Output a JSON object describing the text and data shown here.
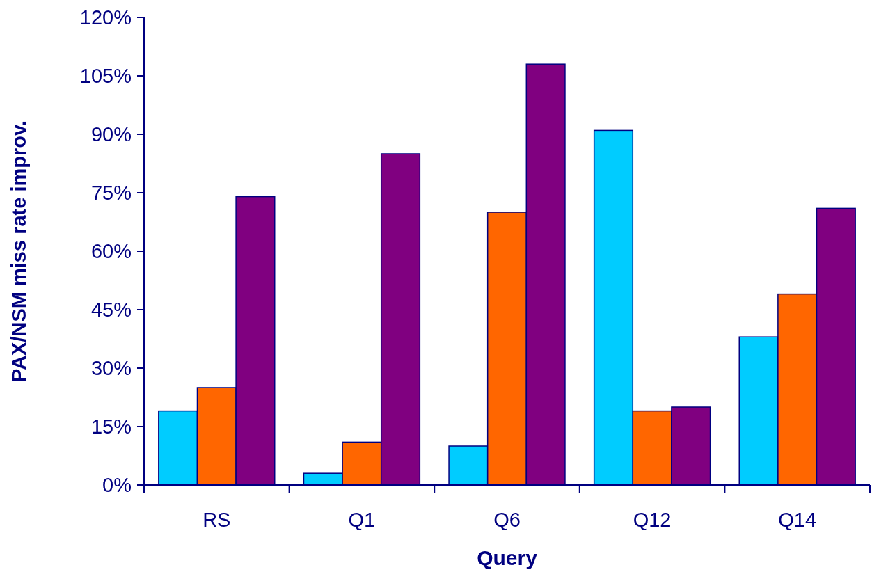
{
  "chart_data": {
    "type": "bar",
    "xlabel": "Query",
    "ylabel": "PAX/NSM miss rate improv.",
    "categories": [
      "RS",
      "Q1",
      "Q6",
      "Q12",
      "Q14"
    ],
    "series": [
      {
        "color": "#00ccff",
        "values": [
          19,
          3,
          10,
          91,
          38
        ]
      },
      {
        "color": "#ff6600",
        "values": [
          25,
          11,
          70,
          19,
          49
        ]
      },
      {
        "color": "#800080",
        "values": [
          74,
          85,
          108,
          20,
          71
        ]
      }
    ],
    "ylim": [
      0,
      120
    ],
    "yticks": [
      {
        "value": 0,
        "label": "0%"
      },
      {
        "value": 15,
        "label": "15%"
      },
      {
        "value": 30,
        "label": "30%"
      },
      {
        "value": 45,
        "label": "45%"
      },
      {
        "value": 60,
        "label": "60%"
      },
      {
        "value": 75,
        "label": "75%"
      },
      {
        "value": 90,
        "label": "90%"
      },
      {
        "value": 105,
        "label": "105%"
      },
      {
        "value": 120,
        "label": "120%"
      }
    ],
    "grid": false
  }
}
